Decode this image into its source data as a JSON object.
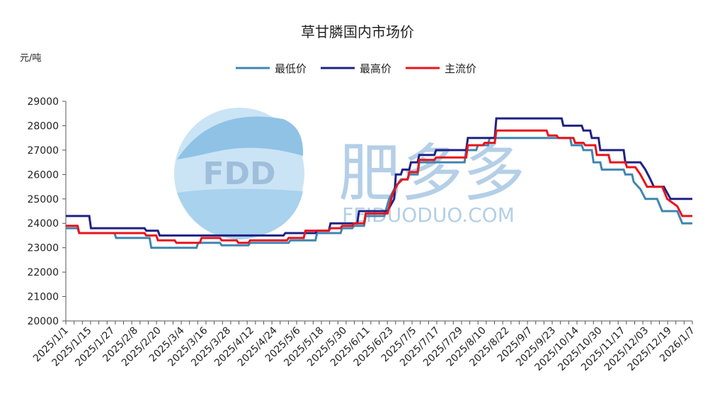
{
  "chart_data": {
    "type": "line",
    "title": "草甘膦国内市场价",
    "ylabel": "元/吨",
    "ylim": [
      20000,
      29000
    ],
    "yticks": [
      20000,
      21000,
      22000,
      23000,
      24000,
      25000,
      26000,
      27000,
      28000,
      29000
    ],
    "xlim": [
      "2025/1/1",
      "2026/1/10"
    ],
    "xtick_labels": [
      "2025/1/1",
      "2025/1/15",
      "2025/1/27",
      "2025/2/8",
      "2025/2/20",
      "2025/3/4",
      "2025/3/16",
      "2025/3/28",
      "2025/4/12",
      "2025/4/24",
      "2025/5/6",
      "2025/5/18",
      "2025/5/30",
      "2025/6/11",
      "2025/6/23",
      "2025/7/5",
      "2025/7/17",
      "2025/7/29",
      "2025/8/10",
      "2025/8/22",
      "2025/9/7",
      "2025/9/23",
      "2025/10/14",
      "2025/10/30",
      "2025/11/17",
      "2025/12/03",
      "2025/12/19",
      "2026/1/7"
    ],
    "legend_position": "top-center",
    "grid": false,
    "series": [
      {
        "name": "最低价",
        "color": "#4185b0",
        "points": [
          [
            "2025/1/1",
            23800
          ],
          [
            "2025/1/8",
            23800
          ],
          [
            "2025/1/9",
            23600
          ],
          [
            "2025/1/30",
            23600
          ],
          [
            "2025/1/31",
            23400
          ],
          [
            "2025/2/20",
            23400
          ],
          [
            "2025/2/21",
            23000
          ],
          [
            "2025/3/20",
            23000
          ],
          [
            "2025/3/21",
            23200
          ],
          [
            "2025/4/3",
            23200
          ],
          [
            "2025/4/4",
            23100
          ],
          [
            "2025/4/20",
            23100
          ],
          [
            "2025/4/21",
            23200
          ],
          [
            "2025/5/14",
            23200
          ],
          [
            "2025/5/15",
            23300
          ],
          [
            "2025/5/30",
            23300
          ],
          [
            "2025/5/31",
            23600
          ],
          [
            "2025/6/14",
            23600
          ],
          [
            "2025/6/15",
            23800
          ],
          [
            "2025/6/21",
            23800
          ],
          [
            "2025/6/22",
            23900
          ],
          [
            "2025/6/28",
            23900
          ],
          [
            "2025/6/29",
            24300
          ],
          [
            "2025/7/10",
            24300
          ],
          [
            "2025/7/13",
            25000
          ],
          [
            "2025/7/16",
            25400
          ],
          [
            "2025/7/20",
            25800
          ],
          [
            "2025/7/24",
            25800
          ],
          [
            "2025/7/25",
            26000
          ],
          [
            "2025/7/30",
            26000
          ],
          [
            "2025/7/31",
            26500
          ],
          [
            "2025/8/27",
            26500
          ],
          [
            "2025/8/28",
            27000
          ],
          [
            "2025/9/3",
            27000
          ],
          [
            "2025/9/4",
            27200
          ],
          [
            "2025/9/10",
            27200
          ],
          [
            "2025/9/11",
            27500
          ],
          [
            "2025/10/23",
            27500
          ],
          [
            "2025/10/29",
            27500
          ],
          [
            "2025/10/30",
            27200
          ],
          [
            "2025/11/5",
            27200
          ],
          [
            "2025/11/6",
            27000
          ],
          [
            "2025/11/11",
            27000
          ],
          [
            "2025/11/12",
            26500
          ],
          [
            "2025/11/16",
            26500
          ],
          [
            "2025/11/17",
            26200
          ],
          [
            "2025/11/30",
            26200
          ],
          [
            "2025/12/1",
            26000
          ],
          [
            "2025/12/5",
            26000
          ],
          [
            "2025/12/6",
            25700
          ],
          [
            "2025/12/10",
            25400
          ],
          [
            "2025/12/13",
            25000
          ],
          [
            "2025/12/20",
            25000
          ],
          [
            "2025/12/23",
            24500
          ],
          [
            "2026/1/1",
            24500
          ],
          [
            "2026/1/4",
            24000
          ],
          [
            "2026/1/10",
            24000
          ]
        ]
      },
      {
        "name": "最高价",
        "color": "#1f2284",
        "points": [
          [
            "2025/1/1",
            24300
          ],
          [
            "2025/1/15",
            24300
          ],
          [
            "2025/1/16",
            23800
          ],
          [
            "2025/2/17",
            23800
          ],
          [
            "2025/2/18",
            23700
          ],
          [
            "2025/2/25",
            23700
          ],
          [
            "2025/2/26",
            23500
          ],
          [
            "2025/5/11",
            23500
          ],
          [
            "2025/5/12",
            23600
          ],
          [
            "2025/5/30",
            23600
          ],
          [
            "2025/5/31",
            23700
          ],
          [
            "2025/6/7",
            23700
          ],
          [
            "2025/6/8",
            24000
          ],
          [
            "2025/6/24",
            24000
          ],
          [
            "2025/6/25",
            24500
          ],
          [
            "2025/7/12",
            24500
          ],
          [
            "2025/7/16",
            25000
          ],
          [
            "2025/7/17",
            26000
          ],
          [
            "2025/7/20",
            26000
          ],
          [
            "2025/7/21",
            26200
          ],
          [
            "2025/7/25",
            26200
          ],
          [
            "2025/7/26",
            26500
          ],
          [
            "2025/7/30",
            26500
          ],
          [
            "2025/7/31",
            26800
          ],
          [
            "2025/8/9",
            26800
          ],
          [
            "2025/8/10",
            27000
          ],
          [
            "2025/8/28",
            27000
          ],
          [
            "2025/8/29",
            27500
          ],
          [
            "2025/9/14",
            27500
          ],
          [
            "2025/9/15",
            28300
          ],
          [
            "2025/10/24",
            28300
          ],
          [
            "2025/10/25",
            28000
          ],
          [
            "2025/11/5",
            28000
          ],
          [
            "2025/11/6",
            27800
          ],
          [
            "2025/11/10",
            27800
          ],
          [
            "2025/11/11",
            27500
          ],
          [
            "2025/11/15",
            27500
          ],
          [
            "2025/11/16",
            27000
          ],
          [
            "2025/11/30",
            27000
          ],
          [
            "2025/12/1",
            26500
          ],
          [
            "2025/12/10",
            26500
          ],
          [
            "2025/12/13",
            26200
          ],
          [
            "2025/12/16",
            25800
          ],
          [
            "2025/12/18",
            25500
          ],
          [
            "2025/12/24",
            25500
          ],
          [
            "2025/12/28",
            25000
          ],
          [
            "2026/1/10",
            25000
          ]
        ]
      },
      {
        "name": "主流价",
        "color": "#e8141c",
        "points": [
          [
            "2025/1/1",
            23900
          ],
          [
            "2025/1/8",
            23900
          ],
          [
            "2025/1/9",
            23600
          ],
          [
            "2025/1/30",
            23600
          ],
          [
            "2025/1/31",
            23600
          ],
          [
            "2025/2/17",
            23600
          ],
          [
            "2025/2/18",
            23500
          ],
          [
            "2025/2/24",
            23500
          ],
          [
            "2025/2/25",
            23300
          ],
          [
            "2025/3/7",
            23300
          ],
          [
            "2025/3/8",
            23200
          ],
          [
            "2025/3/22",
            23200
          ],
          [
            "2025/3/23",
            23400
          ],
          [
            "2025/4/3",
            23400
          ],
          [
            "2025/4/4",
            23300
          ],
          [
            "2025/4/13",
            23300
          ],
          [
            "2025/4/14",
            23200
          ],
          [
            "2025/4/20",
            23200
          ],
          [
            "2025/4/21",
            23300
          ],
          [
            "2025/5/13",
            23300
          ],
          [
            "2025/5/14",
            23400
          ],
          [
            "2025/5/23",
            23400
          ],
          [
            "2025/5/24",
            23700
          ],
          [
            "2025/6/7",
            23700
          ],
          [
            "2025/6/8",
            23800
          ],
          [
            "2025/6/14",
            23800
          ],
          [
            "2025/6/15",
            23900
          ],
          [
            "2025/6/21",
            23900
          ],
          [
            "2025/6/22",
            24000
          ],
          [
            "2025/6/28",
            24000
          ],
          [
            "2025/6/29",
            24400
          ],
          [
            "2025/7/12",
            24400
          ],
          [
            "2025/7/15",
            25200
          ],
          [
            "2025/7/18",
            25600
          ],
          [
            "2025/7/21",
            25800
          ],
          [
            "2025/7/24",
            25800
          ],
          [
            "2025/7/25",
            26100
          ],
          [
            "2025/7/30",
            26100
          ],
          [
            "2025/7/31",
            26600
          ],
          [
            "2025/8/9",
            26600
          ],
          [
            "2025/8/10",
            26700
          ],
          [
            "2025/8/28",
            26700
          ],
          [
            "2025/8/29",
            27200
          ],
          [
            "2025/9/7",
            27200
          ],
          [
            "2025/9/8",
            27300
          ],
          [
            "2025/9/14",
            27300
          ],
          [
            "2025/9/15",
            27800
          ],
          [
            "2025/10/15",
            27800
          ],
          [
            "2025/10/16",
            27600
          ],
          [
            "2025/10/21",
            27600
          ],
          [
            "2025/10/22",
            27500
          ],
          [
            "2025/10/31",
            27500
          ],
          [
            "2025/11/1",
            27300
          ],
          [
            "2025/11/6",
            27300
          ],
          [
            "2025/11/7",
            27200
          ],
          [
            "2025/11/13",
            27200
          ],
          [
            "2025/11/14",
            26800
          ],
          [
            "2025/11/21",
            26800
          ],
          [
            "2025/11/22",
            26500
          ],
          [
            "2025/12/1",
            26500
          ],
          [
            "2025/12/2",
            26300
          ],
          [
            "2025/12/7",
            26300
          ],
          [
            "2025/12/10",
            26000
          ],
          [
            "2025/12/14",
            25500
          ],
          [
            "2025/12/23",
            25500
          ],
          [
            "2025/12/26",
            25000
          ],
          [
            "2026/1/1",
            24700
          ],
          [
            "2026/1/4",
            24300
          ],
          [
            "2026/1/10",
            24300
          ]
        ]
      }
    ]
  },
  "watermark": {
    "logo_text": "FDD",
    "brand_text": "肥多多",
    "url_text": "FEIDUODUO.COM",
    "colors": {
      "logo_top": "#6aaedd",
      "logo_bottom": "#a8d4f0",
      "brand": "#8fb6d8"
    }
  }
}
